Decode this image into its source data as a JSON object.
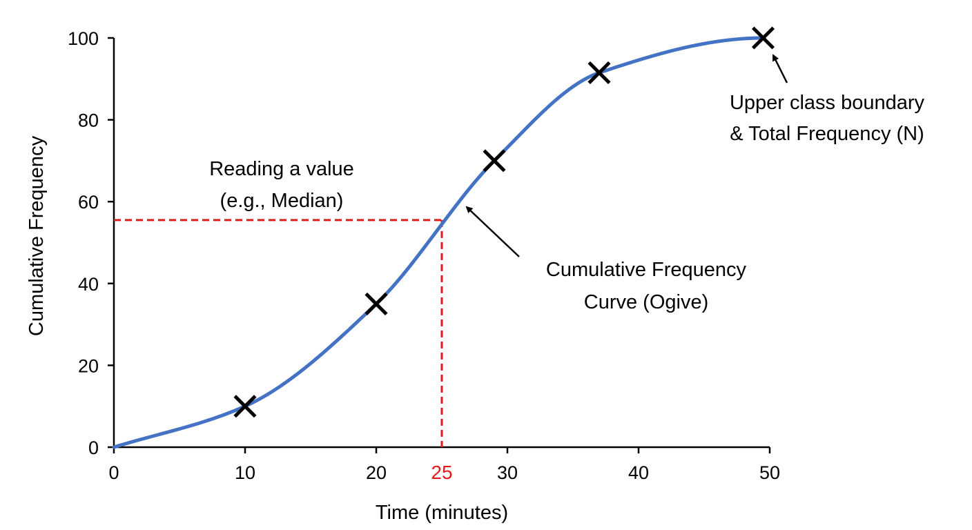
{
  "chart_data": {
    "type": "line",
    "title": "",
    "xlabel": "Time (minutes)",
    "ylabel": "Cumulative Frequency",
    "xlim": [
      0,
      50
    ],
    "ylim": [
      0,
      100
    ],
    "x_ticks": [
      "0",
      "10",
      "20",
      "30",
      "40",
      "50"
    ],
    "y_ticks": [
      "0",
      "20",
      "40",
      "60",
      "80",
      "100"
    ],
    "grid": false,
    "legend": "none",
    "colors": {
      "curve": "#4472c4",
      "reading_line": "#e31a1c",
      "points": "#000000"
    },
    "series": [
      {
        "points": [
          {
            "x": 0,
            "y": 0
          },
          {
            "x": 10,
            "y": 10
          },
          {
            "x": 20,
            "y": 35
          },
          {
            "x": 29,
            "y": 70
          },
          {
            "x": 37,
            "y": 91.5
          },
          {
            "x": 49.5,
            "y": 100
          }
        ]
      }
    ],
    "reading_line": {
      "x": 25,
      "y": 55.5,
      "x_label": "25"
    },
    "annotations": [
      {
        "lines": [
          "Upper class boundary",
          "& Total Frequency (N)"
        ],
        "arrow_target": {
          "x": 49.5,
          "y": 100
        }
      },
      {
        "lines": [
          "Reading a value",
          "(e.g., Median)"
        ]
      },
      {
        "lines": [
          "Cumulative Frequency",
          "Curve (Ogive)"
        ],
        "arrow_target": {
          "x": 26.5,
          "y": 59
        }
      }
    ]
  }
}
